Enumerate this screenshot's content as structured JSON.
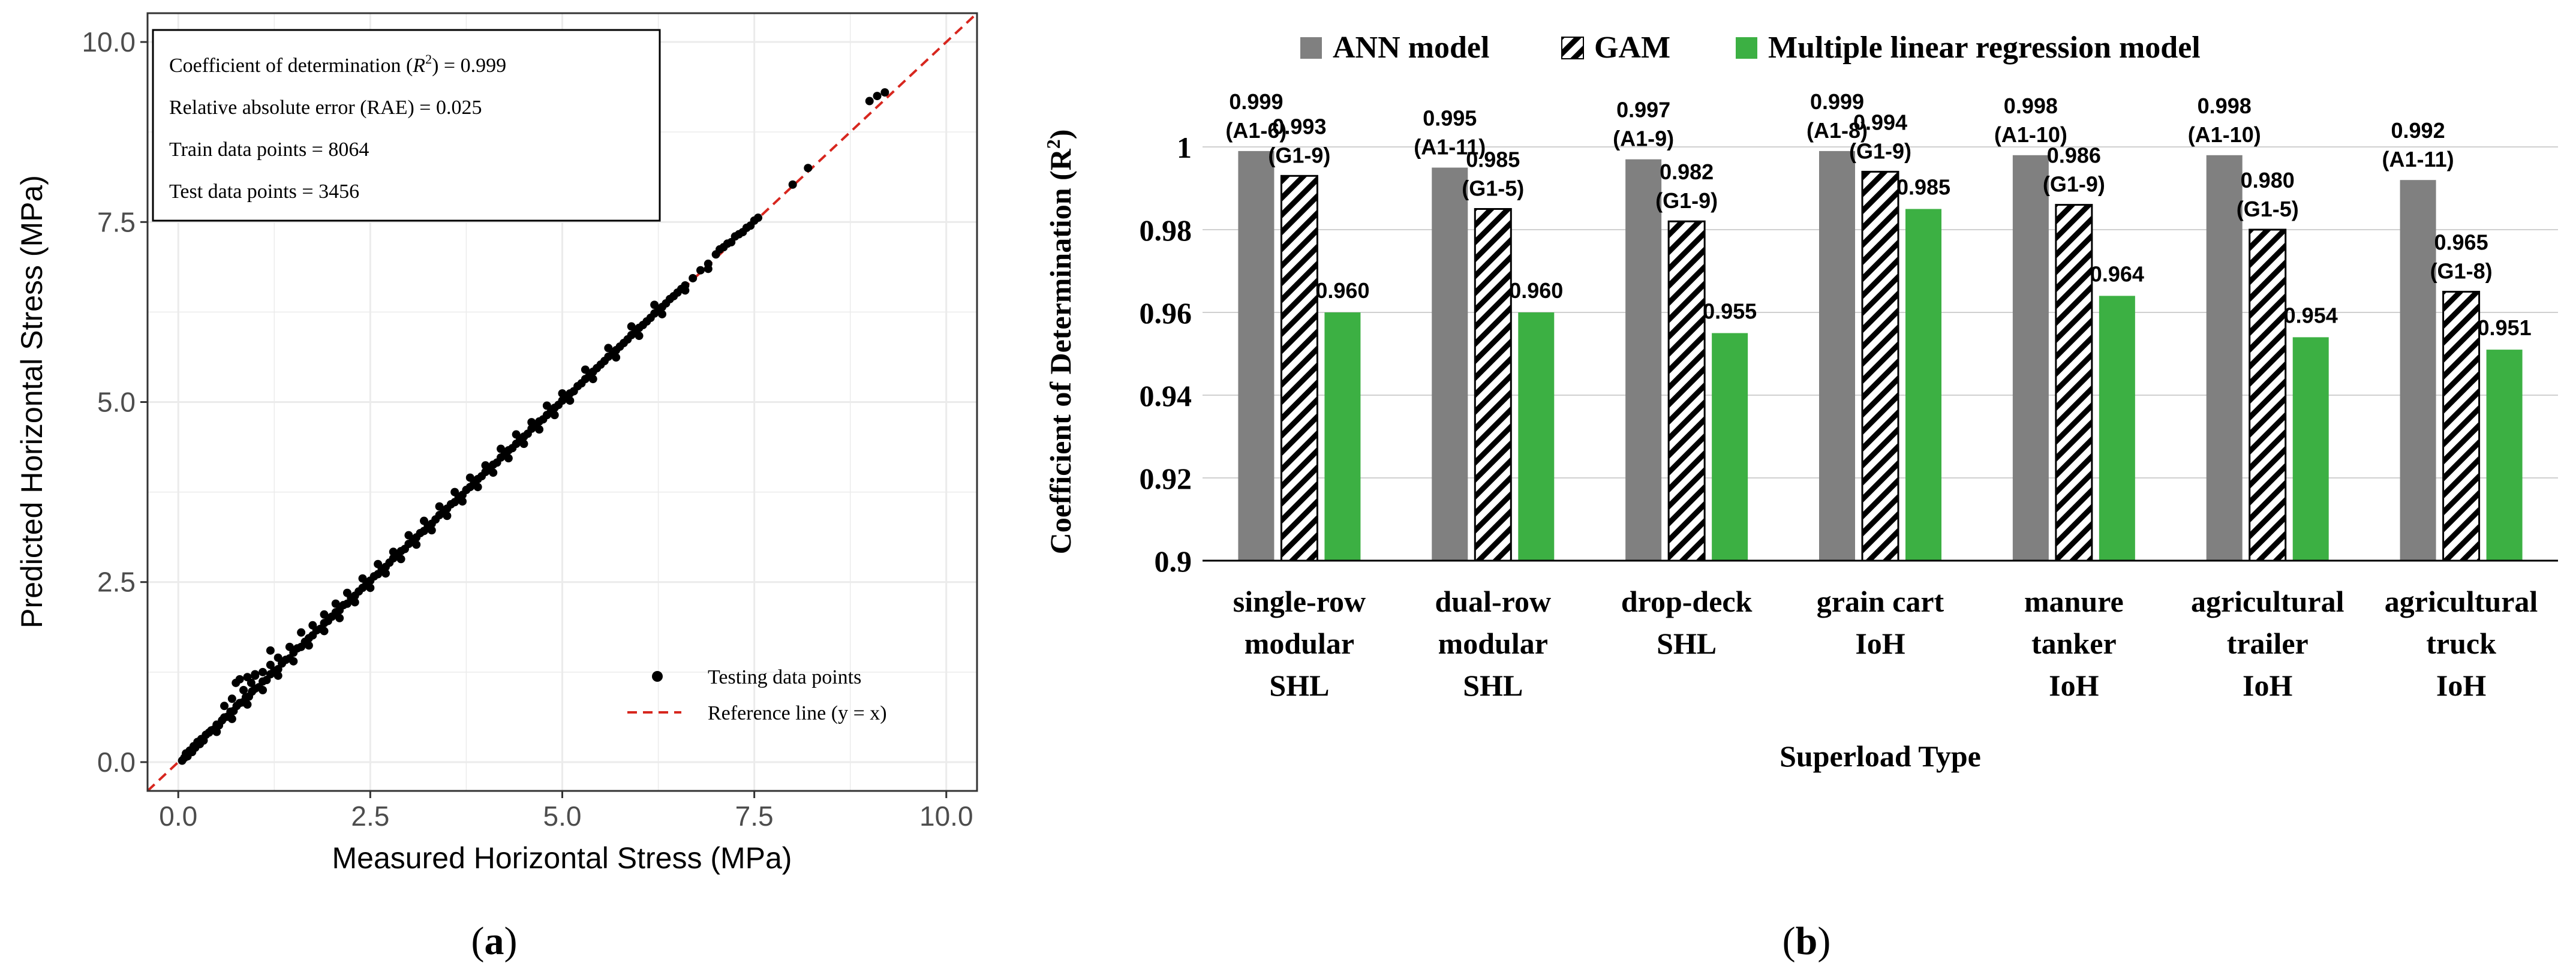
{
  "chart_data": [
    {
      "type": "scatter",
      "panel_label": "(a)",
      "panel_letter": "a",
      "xlabel": "Measured Horizontal Stress (MPa)",
      "ylabel": "Predicted Horizontal Stress (MPa)",
      "xlim": [
        -0.4,
        10.4
      ],
      "ylim": [
        -0.4,
        10.4
      ],
      "xticks": [
        0.0,
        2.5,
        5.0,
        7.5,
        10.0
      ],
      "yticks": [
        0.0,
        2.5,
        5.0,
        7.5,
        10.0
      ],
      "xtick_labels": [
        "0.0",
        "2.5",
        "5.0",
        "7.5",
        "10.0"
      ],
      "ytick_labels": [
        "0.0",
        "2.5",
        "5.0",
        "7.5",
        "10.0"
      ],
      "grid": true,
      "stats_box": {
        "r2_prefix": "Coefficient of determination (",
        "r2_symbol": "R",
        "r2_exp": "2",
        "r2_suffix": ") = 0.999",
        "rae": "Relative absolute error (RAE) = 0.025",
        "train": "Train data points = 8064",
        "test": "Test data points = 3456"
      },
      "legend": {
        "position": "bottom-right",
        "points_label": "Testing data points",
        "line_label": "Reference line (y = x)"
      },
      "reference_line": {
        "slope": 1,
        "intercept": 0,
        "color": "#d7261e"
      },
      "point_color": "#000000",
      "points": [
        [
          0.05,
          0.02
        ],
        [
          0.08,
          0.06
        ],
        [
          0.1,
          0.12
        ],
        [
          0.12,
          0.08
        ],
        [
          0.15,
          0.16
        ],
        [
          0.18,
          0.14
        ],
        [
          0.2,
          0.22
        ],
        [
          0.22,
          0.2
        ],
        [
          0.25,
          0.28
        ],
        [
          0.28,
          0.25
        ],
        [
          0.3,
          0.32
        ],
        [
          0.33,
          0.3
        ],
        [
          0.36,
          0.38
        ],
        [
          0.4,
          0.41
        ],
        [
          0.43,
          0.44
        ],
        [
          0.46,
          0.45
        ],
        [
          0.5,
          0.52
        ],
        [
          0.53,
          0.51
        ],
        [
          0.57,
          0.58
        ],
        [
          0.6,
          0.62
        ],
        [
          0.64,
          0.63
        ],
        [
          0.68,
          0.7
        ],
        [
          0.72,
          0.71
        ],
        [
          0.76,
          0.78
        ],
        [
          0.8,
          0.82
        ],
        [
          0.84,
          0.83
        ],
        [
          0.88,
          0.9
        ],
        [
          0.92,
          0.91
        ],
        [
          0.96,
          0.98
        ],
        [
          1.0,
          1.02
        ],
        [
          1.05,
          1.04
        ],
        [
          1.1,
          1.12
        ],
        [
          1.15,
          1.14
        ],
        [
          1.2,
          1.22
        ],
        [
          1.25,
          1.27
        ],
        [
          1.3,
          1.29
        ],
        [
          1.35,
          1.37
        ],
        [
          1.4,
          1.42
        ],
        [
          1.45,
          1.44
        ],
        [
          1.5,
          1.52
        ],
        [
          1.55,
          1.58
        ],
        [
          1.6,
          1.6
        ],
        [
          1.65,
          1.67
        ],
        [
          1.7,
          1.72
        ],
        [
          1.75,
          1.76
        ],
        [
          1.8,
          1.83
        ],
        [
          1.85,
          1.85
        ],
        [
          1.9,
          1.93
        ],
        [
          1.95,
          1.96
        ],
        [
          2.0,
          2.02
        ],
        [
          2.05,
          2.08
        ],
        [
          2.1,
          2.11
        ],
        [
          2.15,
          2.18
        ],
        [
          2.2,
          2.2
        ],
        [
          2.25,
          2.28
        ],
        [
          2.3,
          2.31
        ],
        [
          2.35,
          2.37
        ],
        [
          2.4,
          2.42
        ],
        [
          2.45,
          2.47
        ],
        [
          2.5,
          2.52
        ],
        [
          2.55,
          2.58
        ],
        [
          2.6,
          2.61
        ],
        [
          2.65,
          2.68
        ],
        [
          2.7,
          2.71
        ],
        [
          2.75,
          2.77
        ],
        [
          2.8,
          2.83
        ],
        [
          2.85,
          2.86
        ],
        [
          2.9,
          2.93
        ],
        [
          2.95,
          2.96
        ],
        [
          3.0,
          3.03
        ],
        [
          3.05,
          3.06
        ],
        [
          3.1,
          3.12
        ],
        [
          3.15,
          3.18
        ],
        [
          3.2,
          3.21
        ],
        [
          3.25,
          3.28
        ],
        [
          3.3,
          3.31
        ],
        [
          3.35,
          3.37
        ],
        [
          3.4,
          3.43
        ],
        [
          3.45,
          3.46
        ],
        [
          3.5,
          3.52
        ],
        [
          3.55,
          3.58
        ],
        [
          3.6,
          3.61
        ],
        [
          3.65,
          3.68
        ],
        [
          3.7,
          3.71
        ],
        [
          3.75,
          3.78
        ],
        [
          3.8,
          3.82
        ],
        [
          3.85,
          3.87
        ],
        [
          3.9,
          3.93
        ],
        [
          3.95,
          3.97
        ],
        [
          4.0,
          4.03
        ],
        [
          4.05,
          4.07
        ],
        [
          4.1,
          4.13
        ],
        [
          4.15,
          4.16
        ],
        [
          4.2,
          4.23
        ],
        [
          4.25,
          4.27
        ],
        [
          4.3,
          4.33
        ],
        [
          4.35,
          4.36
        ],
        [
          4.4,
          4.42
        ],
        [
          4.45,
          4.48
        ],
        [
          4.5,
          4.52
        ],
        [
          4.55,
          4.56
        ],
        [
          4.6,
          4.63
        ],
        [
          4.65,
          4.66
        ],
        [
          4.7,
          4.73
        ],
        [
          4.75,
          4.76
        ],
        [
          4.8,
          4.82
        ],
        [
          4.85,
          4.86
        ],
        [
          4.9,
          4.92
        ],
        [
          4.95,
          4.96
        ],
        [
          5.0,
          5.02
        ],
        [
          5.05,
          5.06
        ],
        [
          5.1,
          5.12
        ],
        [
          5.15,
          5.15
        ],
        [
          5.2,
          5.22
        ],
        [
          5.25,
          5.26
        ],
        [
          5.3,
          5.32
        ],
        [
          5.35,
          5.36
        ],
        [
          5.4,
          5.42
        ],
        [
          5.45,
          5.47
        ],
        [
          5.5,
          5.52
        ],
        [
          5.55,
          5.57
        ],
        [
          5.6,
          5.63
        ],
        [
          5.65,
          5.66
        ],
        [
          5.7,
          5.72
        ],
        [
          5.75,
          5.77
        ],
        [
          5.8,
          5.82
        ],
        [
          5.85,
          5.87
        ],
        [
          5.9,
          5.93
        ],
        [
          5.95,
          5.97
        ],
        [
          6.0,
          6.03
        ],
        [
          6.05,
          6.07
        ],
        [
          6.1,
          6.12
        ],
        [
          6.15,
          6.17
        ],
        [
          6.2,
          6.23
        ],
        [
          6.25,
          6.27
        ],
        [
          6.3,
          6.32
        ],
        [
          6.35,
          6.37
        ],
        [
          6.4,
          6.43
        ],
        [
          6.45,
          6.47
        ],
        [
          6.5,
          6.52
        ],
        [
          6.55,
          6.57
        ],
        [
          6.6,
          6.62
        ],
        [
          6.7,
          6.72
        ],
        [
          6.8,
          6.83
        ],
        [
          6.9,
          6.92
        ],
        [
          7.0,
          7.05
        ],
        [
          7.05,
          7.12
        ],
        [
          7.1,
          7.15
        ],
        [
          7.15,
          7.2
        ],
        [
          7.2,
          7.22
        ],
        [
          7.25,
          7.3
        ],
        [
          7.3,
          7.33
        ],
        [
          7.35,
          7.36
        ],
        [
          7.4,
          7.42
        ],
        [
          7.45,
          7.45
        ],
        [
          7.5,
          7.52
        ],
        [
          7.55,
          7.56
        ],
        [
          0.85,
          1.0
        ],
        [
          0.95,
          1.1
        ],
        [
          1.0,
          1.2
        ],
        [
          1.1,
          1.25
        ],
        [
          1.2,
          1.35
        ],
        [
          1.3,
          1.45
        ],
        [
          1.45,
          1.6
        ],
        [
          1.6,
          1.8
        ],
        [
          1.75,
          1.9
        ],
        [
          1.9,
          2.05
        ],
        [
          2.05,
          2.2
        ],
        [
          2.2,
          2.35
        ],
        [
          2.4,
          2.55
        ],
        [
          2.6,
          2.75
        ],
        [
          2.8,
          2.92
        ],
        [
          3.0,
          3.15
        ],
        [
          3.2,
          3.35
        ],
        [
          3.4,
          3.55
        ],
        [
          3.6,
          3.75
        ],
        [
          3.8,
          3.95
        ],
        [
          4.0,
          4.12
        ],
        [
          4.2,
          4.35
        ],
        [
          4.4,
          4.55
        ],
        [
          4.6,
          4.72
        ],
        [
          4.8,
          4.95
        ],
        [
          5.0,
          5.12
        ],
        [
          5.3,
          5.45
        ],
        [
          5.6,
          5.75
        ],
        [
          5.9,
          6.05
        ],
        [
          6.2,
          6.35
        ],
        [
          0.5,
          0.42
        ],
        [
          0.7,
          0.6
        ],
        [
          0.9,
          0.8
        ],
        [
          1.1,
          1.0
        ],
        [
          1.3,
          1.2
        ],
        [
          1.5,
          1.4
        ],
        [
          1.7,
          1.62
        ],
        [
          1.9,
          1.82
        ],
        [
          2.1,
          2.0
        ],
        [
          2.3,
          2.22
        ],
        [
          2.5,
          2.42
        ],
        [
          2.7,
          2.62
        ],
        [
          2.9,
          2.82
        ],
        [
          3.1,
          3.02
        ],
        [
          3.3,
          3.22
        ],
        [
          3.5,
          3.42
        ],
        [
          3.7,
          3.62
        ],
        [
          3.9,
          3.82
        ],
        [
          4.1,
          4.02
        ],
        [
          4.3,
          4.22
        ],
        [
          4.5,
          4.42
        ],
        [
          4.7,
          4.62
        ],
        [
          4.9,
          4.82
        ],
        [
          5.1,
          5.02
        ],
        [
          5.4,
          5.32
        ],
        [
          5.7,
          5.62
        ],
        [
          6.0,
          5.92
        ],
        [
          6.3,
          6.22
        ],
        [
          6.6,
          6.55
        ],
        [
          6.9,
          6.85
        ],
        [
          0.8,
          1.15
        ],
        [
          0.9,
          1.18
        ],
        [
          1.0,
          1.22
        ],
        [
          0.75,
          1.1
        ],
        [
          1.2,
          1.55
        ],
        [
          0.6,
          0.78
        ],
        [
          0.7,
          0.88
        ],
        [
          8.0,
          8.02
        ],
        [
          8.2,
          8.25
        ],
        [
          9.0,
          9.18
        ],
        [
          9.1,
          9.25
        ],
        [
          9.2,
          9.3
        ]
      ]
    },
    {
      "type": "bar",
      "panel_label": "(b)",
      "panel_letter": "b",
      "xlabel": "Superload Type",
      "ylabel": "Coefficient of Determination (R",
      "ylabel_exp": "2",
      "ylabel_close": ")",
      "ylim": [
        0.9,
        1.0
      ],
      "yticks": [
        0.9,
        0.92,
        0.94,
        0.96,
        0.98,
        1.0
      ],
      "ytick_labels": [
        "0.9",
        "0.92",
        "0.94",
        "0.96",
        "0.98",
        "1"
      ],
      "grid": true,
      "legend": {
        "position": "top",
        "entries": [
          "ANN model",
          "GAM",
          "Multiple linear regression model"
        ]
      },
      "categories": [
        [
          "single-row",
          "modular",
          "SHL"
        ],
        [
          "dual-row",
          "modular",
          "SHL"
        ],
        [
          "drop-deck",
          "SHL"
        ],
        [
          "grain cart",
          "IoH"
        ],
        [
          "manure",
          "tanker",
          "IoH"
        ],
        [
          "agricultural",
          "trailer",
          "IoH"
        ],
        [
          "agricultural",
          "truck",
          "IoH"
        ]
      ],
      "series": [
        {
          "name": "ANN model",
          "color": "#808080",
          "pattern": "solid",
          "values": [
            0.999,
            0.995,
            0.997,
            0.999,
            0.998,
            0.998,
            0.992
          ],
          "value_labels": [
            "0.999",
            "0.995",
            "0.997",
            "0.999",
            "0.998",
            "0.998",
            "0.992"
          ],
          "model_labels": [
            "(A1-6)",
            "(A1-11)",
            "(A1-9)",
            "(A1-8)",
            "(A1-10)",
            "(A1-10)",
            "(A1-11)"
          ]
        },
        {
          "name": "GAM",
          "color": "#000000",
          "pattern": "hatch",
          "values": [
            0.993,
            0.985,
            0.982,
            0.994,
            0.986,
            0.98,
            0.965
          ],
          "value_labels": [
            "0.993",
            "0.985",
            "0.982",
            "0.994",
            "0.986",
            "0.980",
            "0.965"
          ],
          "model_labels": [
            "(G1-9)",
            "(G1-5)",
            "(G1-9)",
            "(G1-9)",
            "(G1-9)",
            "(G1-5)",
            "(G1-8)"
          ]
        },
        {
          "name": "Multiple linear regression model",
          "color": "#3cb043",
          "pattern": "solid",
          "values": [
            0.96,
            0.96,
            0.955,
            0.985,
            0.964,
            0.954,
            0.951
          ],
          "value_labels": [
            "0.960",
            "0.960",
            "0.955",
            "0.985",
            "0.964",
            "0.954",
            "0.951"
          ]
        }
      ]
    }
  ]
}
